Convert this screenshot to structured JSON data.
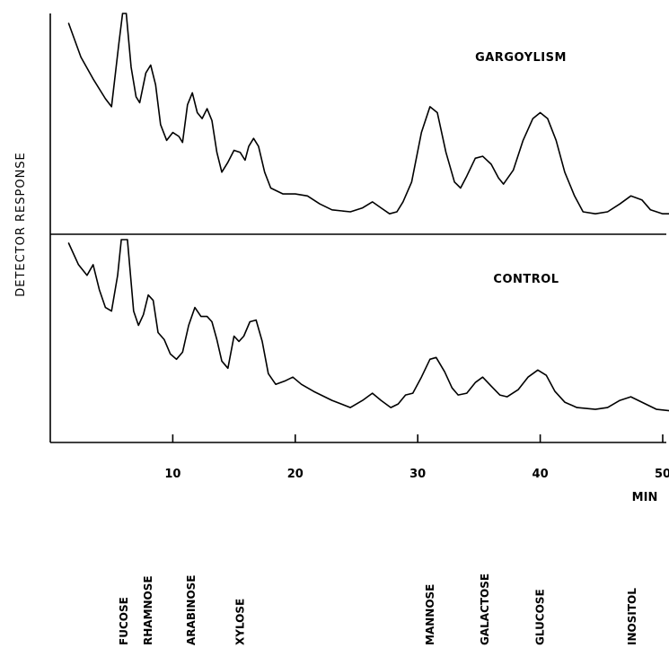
{
  "chart_data": {
    "type": "line",
    "ylabel": "DETECTOR RESPONSE",
    "xlabel": "MIN",
    "xlim": [
      0,
      50
    ],
    "xticks": [
      10,
      20,
      30,
      40,
      50
    ],
    "ylim": [
      0,
      100
    ],
    "panels": [
      {
        "label": "GARGOYLISM",
        "points": [
          [
            1.5,
            95
          ],
          [
            2.5,
            78
          ],
          [
            3.5,
            67
          ],
          [
            4.5,
            57
          ],
          [
            5.0,
            53
          ],
          [
            5.6,
            85
          ],
          [
            5.9,
            100
          ],
          [
            6.2,
            100
          ],
          [
            6.6,
            73
          ],
          [
            7.0,
            58
          ],
          [
            7.3,
            55
          ],
          [
            7.8,
            70
          ],
          [
            8.2,
            74
          ],
          [
            8.6,
            64
          ],
          [
            9.0,
            44
          ],
          [
            9.5,
            36
          ],
          [
            10.0,
            40
          ],
          [
            10.5,
            38
          ],
          [
            10.8,
            35
          ],
          [
            11.2,
            54
          ],
          [
            11.6,
            60
          ],
          [
            12.0,
            50
          ],
          [
            12.4,
            47
          ],
          [
            12.8,
            52
          ],
          [
            13.2,
            46
          ],
          [
            13.6,
            30
          ],
          [
            14.0,
            20
          ],
          [
            14.5,
            25
          ],
          [
            15.0,
            31
          ],
          [
            15.5,
            30
          ],
          [
            15.9,
            26
          ],
          [
            16.2,
            33
          ],
          [
            16.6,
            37
          ],
          [
            17.0,
            33
          ],
          [
            17.5,
            20
          ],
          [
            18.0,
            12
          ],
          [
            19.0,
            9
          ],
          [
            20.0,
            9
          ],
          [
            21.0,
            8
          ],
          [
            22.0,
            4
          ],
          [
            23.0,
            1
          ],
          [
            24.5,
            0
          ],
          [
            25.5,
            2
          ],
          [
            26.3,
            5
          ],
          [
            27.0,
            2
          ],
          [
            27.7,
            -1
          ],
          [
            28.3,
            0
          ],
          [
            28.8,
            5
          ],
          [
            29.5,
            15
          ],
          [
            30.3,
            40
          ],
          [
            31.0,
            53
          ],
          [
            31.6,
            50
          ],
          [
            32.3,
            30
          ],
          [
            33.0,
            15
          ],
          [
            33.5,
            12
          ],
          [
            34.0,
            18
          ],
          [
            34.7,
            27
          ],
          [
            35.3,
            28
          ],
          [
            36.0,
            24
          ],
          [
            36.6,
            17
          ],
          [
            37.0,
            14
          ],
          [
            37.8,
            21
          ],
          [
            38.6,
            36
          ],
          [
            39.4,
            47
          ],
          [
            40.0,
            50
          ],
          [
            40.6,
            47
          ],
          [
            41.3,
            36
          ],
          [
            42.0,
            20
          ],
          [
            42.8,
            8
          ],
          [
            43.5,
            0
          ],
          [
            44.5,
            -1
          ],
          [
            45.5,
            0
          ],
          [
            46.5,
            4
          ],
          [
            47.4,
            8
          ],
          [
            48.3,
            6
          ],
          [
            49.0,
            1
          ],
          [
            50.0,
            -1
          ],
          [
            50.8,
            -1
          ]
        ]
      },
      {
        "label": "CONTROL",
        "points": [
          [
            1.5,
            98
          ],
          [
            2.3,
            86
          ],
          [
            3.0,
            80
          ],
          [
            3.5,
            86
          ],
          [
            4.0,
            72
          ],
          [
            4.5,
            62
          ],
          [
            5.0,
            60
          ],
          [
            5.5,
            80
          ],
          [
            5.8,
            100
          ],
          [
            6.3,
            100
          ],
          [
            6.8,
            60
          ],
          [
            7.2,
            52
          ],
          [
            7.6,
            58
          ],
          [
            8.0,
            69
          ],
          [
            8.4,
            66
          ],
          [
            8.8,
            48
          ],
          [
            9.3,
            44
          ],
          [
            9.8,
            36
          ],
          [
            10.3,
            33
          ],
          [
            10.8,
            37
          ],
          [
            11.3,
            52
          ],
          [
            11.8,
            62
          ],
          [
            12.3,
            57
          ],
          [
            12.8,
            57
          ],
          [
            13.2,
            54
          ],
          [
            13.6,
            44
          ],
          [
            14.0,
            32
          ],
          [
            14.5,
            28
          ],
          [
            15.0,
            46
          ],
          [
            15.4,
            43
          ],
          [
            15.8,
            46
          ],
          [
            16.3,
            54
          ],
          [
            16.8,
            55
          ],
          [
            17.3,
            43
          ],
          [
            17.8,
            25
          ],
          [
            18.4,
            19
          ],
          [
            19.2,
            21
          ],
          [
            19.8,
            23
          ],
          [
            20.5,
            19
          ],
          [
            21.5,
            15
          ],
          [
            23.0,
            10
          ],
          [
            24.5,
            6
          ],
          [
            25.5,
            10
          ],
          [
            26.3,
            14
          ],
          [
            27.0,
            10
          ],
          [
            27.8,
            6
          ],
          [
            28.4,
            8
          ],
          [
            29.0,
            13
          ],
          [
            29.6,
            14
          ],
          [
            30.3,
            23
          ],
          [
            31.0,
            33
          ],
          [
            31.5,
            34
          ],
          [
            32.2,
            26
          ],
          [
            32.8,
            17
          ],
          [
            33.3,
            13
          ],
          [
            34.0,
            14
          ],
          [
            34.7,
            20
          ],
          [
            35.3,
            23
          ],
          [
            36.0,
            18
          ],
          [
            36.7,
            13
          ],
          [
            37.3,
            12
          ],
          [
            38.2,
            16
          ],
          [
            39.0,
            23
          ],
          [
            39.8,
            27
          ],
          [
            40.5,
            24
          ],
          [
            41.2,
            15
          ],
          [
            42.0,
            9
          ],
          [
            43.0,
            6
          ],
          [
            44.5,
            5
          ],
          [
            45.5,
            6
          ],
          [
            46.5,
            10
          ],
          [
            47.4,
            12
          ],
          [
            48.3,
            9
          ],
          [
            49.5,
            5
          ],
          [
            50.8,
            4
          ]
        ]
      }
    ],
    "sugars": [
      {
        "name": "FUCOSE",
        "t": 6.0
      },
      {
        "name": "RHAMNOSE",
        "t": 8.0
      },
      {
        "name": "ARABINOSE",
        "t": 11.5
      },
      {
        "name": "XYLOSE",
        "t": 15.5
      },
      {
        "name": "MANNOSE",
        "t": 31.0
      },
      {
        "name": "GALACTOSE",
        "t": 35.5
      },
      {
        "name": "GLUCOSE",
        "t": 40.0
      },
      {
        "name": "INOSITOL",
        "t": 47.5
      }
    ]
  }
}
